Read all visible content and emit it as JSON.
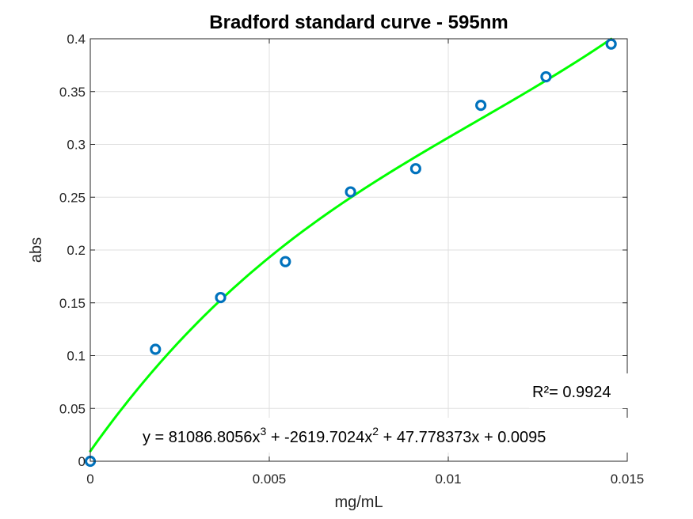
{
  "chart_data": {
    "type": "scatter",
    "title": "Bradford standard curve - 595nm",
    "xlabel": "mg/mL",
    "ylabel": "abs",
    "xlim": [
      0,
      0.015
    ],
    "ylim": [
      0,
      0.4
    ],
    "x_ticks": [
      "0",
      "0.005",
      "0.01",
      "0.015"
    ],
    "y_ticks": [
      "0",
      "0.05",
      "0.1",
      "0.15",
      "0.2",
      "0.25",
      "0.3",
      "0.35",
      "0.4"
    ],
    "grid": true,
    "series": [
      {
        "marker": "circle",
        "color": "#0072bd",
        "x": [
          0,
          0.00182,
          0.00364,
          0.00545,
          0.00727,
          0.00909,
          0.01091,
          0.01273,
          0.01455
        ],
        "y": [
          0.0,
          0.106,
          0.155,
          0.189,
          0.255,
          0.277,
          0.337,
          0.364,
          0.395
        ]
      },
      {
        "type": "line",
        "color": "#00ff00",
        "fit": "cubic",
        "coefficients": [
          81086.8056,
          -2619.7024,
          47.778373,
          0.0095
        ]
      }
    ],
    "annotations": {
      "r2": "R²= 0.9924",
      "eq_part1": "y = 81086.8056x",
      "eq_exp1": "3",
      "eq_part2": " + -2619.7024x",
      "eq_exp2": "2",
      "eq_part3": " + 47.778373x + 0.0095"
    }
  }
}
